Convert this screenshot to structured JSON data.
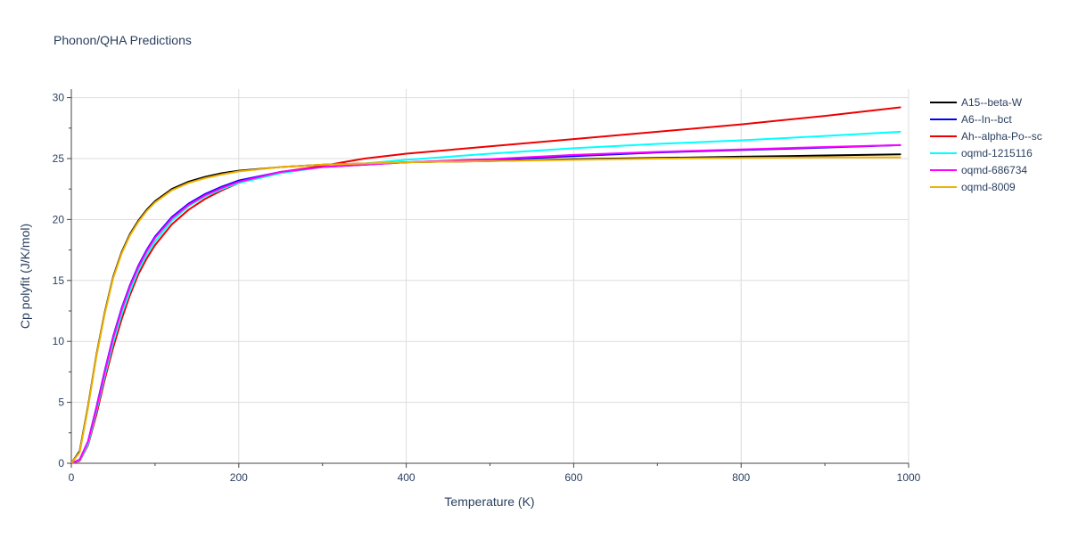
{
  "chart_data": {
    "type": "line",
    "title": "Phonon/QHA Predictions",
    "xlabel": "Temperature (K)",
    "ylabel": "Cp polyfit (J/K/mol)",
    "xlim": [
      0,
      1000
    ],
    "ylim": [
      0,
      30.7
    ],
    "x_ticks": [
      0,
      200,
      400,
      600,
      800,
      1000
    ],
    "y_ticks": [
      0,
      5,
      10,
      15,
      20,
      25,
      30
    ],
    "grid": true,
    "legend_position": "top-right",
    "x": [
      0,
      10,
      20,
      30,
      40,
      50,
      60,
      70,
      80,
      90,
      100,
      120,
      140,
      160,
      180,
      200,
      250,
      300,
      350,
      400,
      500,
      600,
      700,
      800,
      900,
      990
    ],
    "series": [
      {
        "name": "A15--beta-W",
        "color": "#000000",
        "values": [
          0,
          1.0,
          4.7,
          8.9,
          12.4,
          15.3,
          17.3,
          18.8,
          19.9,
          20.8,
          21.5,
          22.5,
          23.1,
          23.5,
          23.8,
          24.0,
          24.3,
          24.5,
          24.6,
          24.7,
          24.8,
          24.95,
          25.05,
          25.15,
          25.25,
          25.35
        ]
      },
      {
        "name": "A6--In--bct",
        "color": "#0000ff",
        "values": [
          0,
          0.3,
          1.8,
          4.6,
          7.6,
          10.4,
          12.7,
          14.6,
          16.2,
          17.5,
          18.6,
          20.2,
          21.3,
          22.1,
          22.7,
          23.2,
          23.9,
          24.3,
          24.5,
          24.7,
          24.9,
          25.2,
          25.5,
          25.7,
          25.9,
          26.1
        ]
      },
      {
        "name": "Ah--alpha-Po--sc",
        "color": "#ee0000",
        "values": [
          0,
          0.2,
          1.5,
          4.0,
          6.9,
          9.5,
          11.8,
          13.8,
          15.5,
          16.8,
          17.9,
          19.6,
          20.8,
          21.7,
          22.4,
          23.0,
          23.9,
          24.4,
          25.0,
          25.4,
          26.0,
          26.6,
          27.2,
          27.8,
          28.5,
          29.2
        ]
      },
      {
        "name": "oqmd-1215116",
        "color": "#00ffff",
        "values": [
          0,
          0.25,
          1.6,
          4.3,
          7.2,
          9.9,
          12.2,
          14.1,
          15.8,
          17.1,
          18.2,
          19.9,
          21.1,
          21.9,
          22.5,
          23.0,
          23.8,
          24.3,
          24.6,
          24.9,
          25.4,
          25.85,
          26.2,
          26.5,
          26.85,
          27.2
        ]
      },
      {
        "name": "oqmd-686734",
        "color": "#ff00ff",
        "values": [
          0,
          0.3,
          1.8,
          4.5,
          7.5,
          10.3,
          12.6,
          14.5,
          16.1,
          17.4,
          18.5,
          20.1,
          21.2,
          22.0,
          22.6,
          23.1,
          23.9,
          24.3,
          24.5,
          24.7,
          24.95,
          25.3,
          25.55,
          25.75,
          25.95,
          26.1
        ]
      },
      {
        "name": "oqmd-8009",
        "color": "#f0b000",
        "values": [
          0,
          0.9,
          4.6,
          8.8,
          12.3,
          15.2,
          17.2,
          18.7,
          19.8,
          20.7,
          21.4,
          22.4,
          23.0,
          23.4,
          23.7,
          23.95,
          24.3,
          24.5,
          24.6,
          24.7,
          24.8,
          24.9,
          25.0,
          25.05,
          25.1,
          25.1
        ]
      }
    ]
  }
}
